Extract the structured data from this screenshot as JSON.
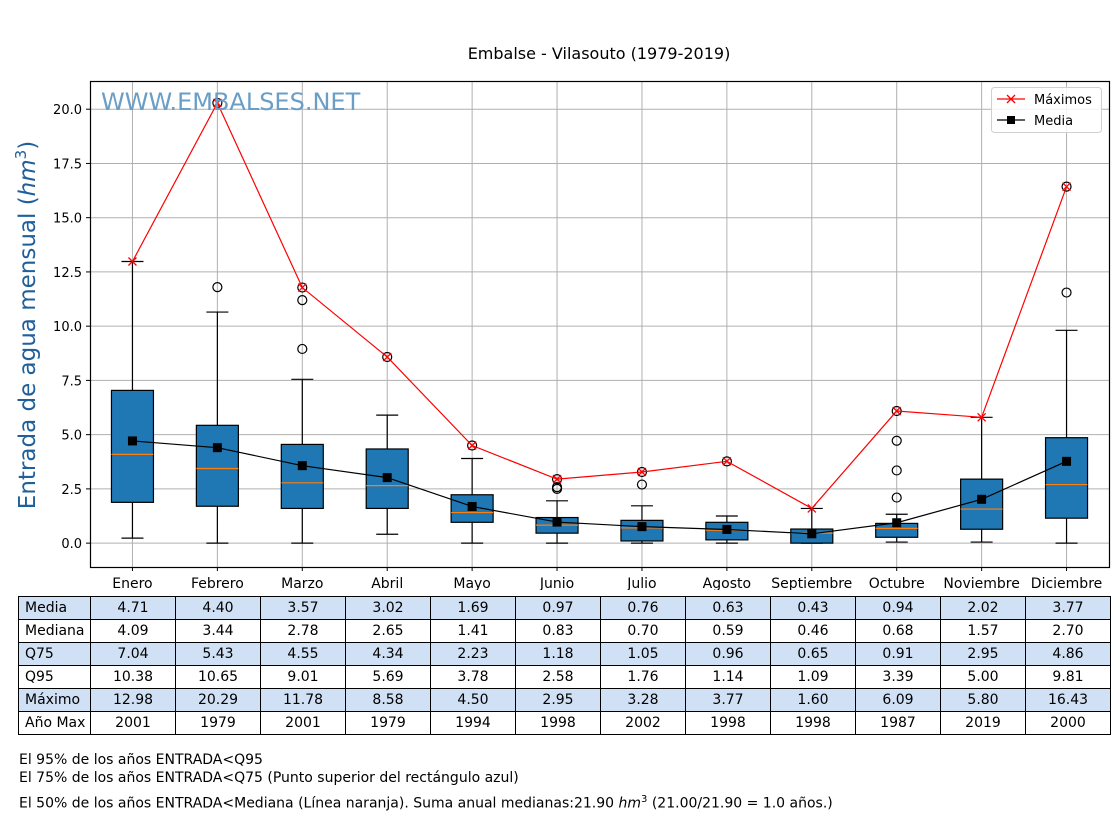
{
  "chart_data": {
    "type": "box",
    "title": "Embalse - Vilasouto (1979-2019)",
    "watermark": "WWW.EMBALSES.NET",
    "ylabel": "Entrada de agua mensual",
    "ylabel_unit": "hm",
    "ylabel_unit_exp": "3",
    "xlabel": "",
    "ylim": [
      -1.1,
      21.3
    ],
    "yticks": [
      0.0,
      2.5,
      5.0,
      7.5,
      10.0,
      12.5,
      15.0,
      17.5,
      20.0
    ],
    "ytick_labels": [
      "0.0",
      "2.5",
      "5.0",
      "7.5",
      "10.0",
      "12.5",
      "15.0",
      "17.5",
      "20.0"
    ],
    "grid": true,
    "legend_position": "top-right",
    "categories": [
      "Enero",
      "Febrero",
      "Marzo",
      "Abril",
      "Mayo",
      "Junio",
      "Julio",
      "Agosto",
      "Septiembre",
      "Octubre",
      "Noviembre",
      "Diciembre"
    ],
    "boxes": [
      {
        "q25": 1.88,
        "median": 4.09,
        "q75": 7.04,
        "whisker_low": 0.23,
        "whisker_high": 12.98,
        "outliers": []
      },
      {
        "q25": 1.7,
        "median": 3.44,
        "q75": 5.43,
        "whisker_low": 0.0,
        "whisker_high": 10.65,
        "outliers": [
          11.8,
          20.29
        ]
      },
      {
        "q25": 1.6,
        "median": 2.78,
        "q75": 4.55,
        "whisker_low": 0.0,
        "whisker_high": 7.55,
        "outliers": [
          8.95,
          11.2,
          11.78
        ]
      },
      {
        "q25": 1.6,
        "median": 2.65,
        "q75": 4.34,
        "whisker_low": 0.41,
        "whisker_high": 5.9,
        "outliers": [
          8.58
        ]
      },
      {
        "q25": 0.96,
        "median": 1.41,
        "q75": 2.23,
        "whisker_low": 0.0,
        "whisker_high": 3.9,
        "outliers": [
          4.5
        ]
      },
      {
        "q25": 0.46,
        "median": 0.83,
        "q75": 1.18,
        "whisker_low": 0.0,
        "whisker_high": 1.95,
        "outliers": [
          2.5,
          2.58,
          2.95
        ]
      },
      {
        "q25": 0.1,
        "median": 0.7,
        "q75": 1.05,
        "whisker_low": 0.0,
        "whisker_high": 1.72,
        "outliers": [
          2.7,
          3.28
        ]
      },
      {
        "q25": 0.15,
        "median": 0.59,
        "q75": 0.96,
        "whisker_low": 0.0,
        "whisker_high": 1.25,
        "outliers": [
          3.77
        ]
      },
      {
        "q25": 0.0,
        "median": 0.46,
        "q75": 0.65,
        "whisker_low": 0.0,
        "whisker_high": 1.6,
        "outliers": []
      },
      {
        "q25": 0.27,
        "median": 0.68,
        "q75": 0.91,
        "whisker_low": 0.05,
        "whisker_high": 1.33,
        "outliers": [
          2.1,
          3.35,
          4.72,
          6.09
        ]
      },
      {
        "q25": 0.64,
        "median": 1.57,
        "q75": 2.95,
        "whisker_low": 0.05,
        "whisker_high": 5.8,
        "outliers": []
      },
      {
        "q25": 1.15,
        "median": 2.7,
        "q75": 4.86,
        "whisker_low": 0.0,
        "whisker_high": 9.81,
        "outliers": [
          11.55,
          16.43
        ]
      }
    ],
    "series": [
      {
        "name": "Máximos",
        "color": "#ff0000",
        "marker": "x",
        "values": [
          12.98,
          20.29,
          11.78,
          8.58,
          4.5,
          2.95,
          3.28,
          3.77,
          1.6,
          6.09,
          5.8,
          16.43
        ]
      },
      {
        "name": "Media",
        "color": "#000000",
        "marker": "square",
        "values": [
          4.71,
          4.4,
          3.57,
          3.02,
          1.69,
          0.97,
          0.76,
          0.63,
          0.43,
          0.94,
          2.02,
          3.77
        ]
      }
    ],
    "colors": {
      "box_fill": "#1f77b4",
      "median_line": "#ff7f0e",
      "grid": "#b0b0b0",
      "ylabel": "#1f5f9a",
      "watermark": "#6a9ec6",
      "table_shade": "#d0e1f5"
    }
  },
  "table": {
    "rows": [
      {
        "label": "Media",
        "shaded": true,
        "values": [
          "4.71",
          "4.40",
          "3.57",
          "3.02",
          "1.69",
          "0.97",
          "0.76",
          "0.63",
          "0.43",
          "0.94",
          "2.02",
          "3.77"
        ]
      },
      {
        "label": "Mediana",
        "shaded": false,
        "values": [
          "4.09",
          "3.44",
          "2.78",
          "2.65",
          "1.41",
          "0.83",
          "0.70",
          "0.59",
          "0.46",
          "0.68",
          "1.57",
          "2.70"
        ]
      },
      {
        "label": "Q75",
        "shaded": true,
        "values": [
          "7.04",
          "5.43",
          "4.55",
          "4.34",
          "2.23",
          "1.18",
          "1.05",
          "0.96",
          "0.65",
          "0.91",
          "2.95",
          "4.86"
        ]
      },
      {
        "label": "Q95",
        "shaded": false,
        "values": [
          "10.38",
          "10.65",
          "9.01",
          "5.69",
          "3.78",
          "2.58",
          "1.76",
          "1.14",
          "1.09",
          "3.39",
          "5.00",
          "9.81"
        ]
      },
      {
        "label": "Máximo",
        "shaded": true,
        "values": [
          "12.98",
          "20.29",
          "11.78",
          "8.58",
          "4.50",
          "2.95",
          "3.28",
          "3.77",
          "1.60",
          "6.09",
          "5.80",
          "16.43"
        ]
      },
      {
        "label": "Año Max",
        "shaded": false,
        "values": [
          "2001",
          "1979",
          "2001",
          "1979",
          "1994",
          "1998",
          "2002",
          "1998",
          "1998",
          "1987",
          "2019",
          "2000"
        ]
      }
    ]
  },
  "notes": {
    "line1": "El 95% de los años ENTRADA<Q95",
    "line2": "El 75% de los años ENTRADA<Q75 (Punto superior del rectángulo azul)",
    "line3_prefix": "El 50% de los años ENTRADA<Mediana (Línea naranja). Suma anual medianas:21.90 ",
    "line3_unit": "hm",
    "line3_exp": "3",
    "line3_suffix": " (21.00/21.90 = 1.0 años.)"
  }
}
